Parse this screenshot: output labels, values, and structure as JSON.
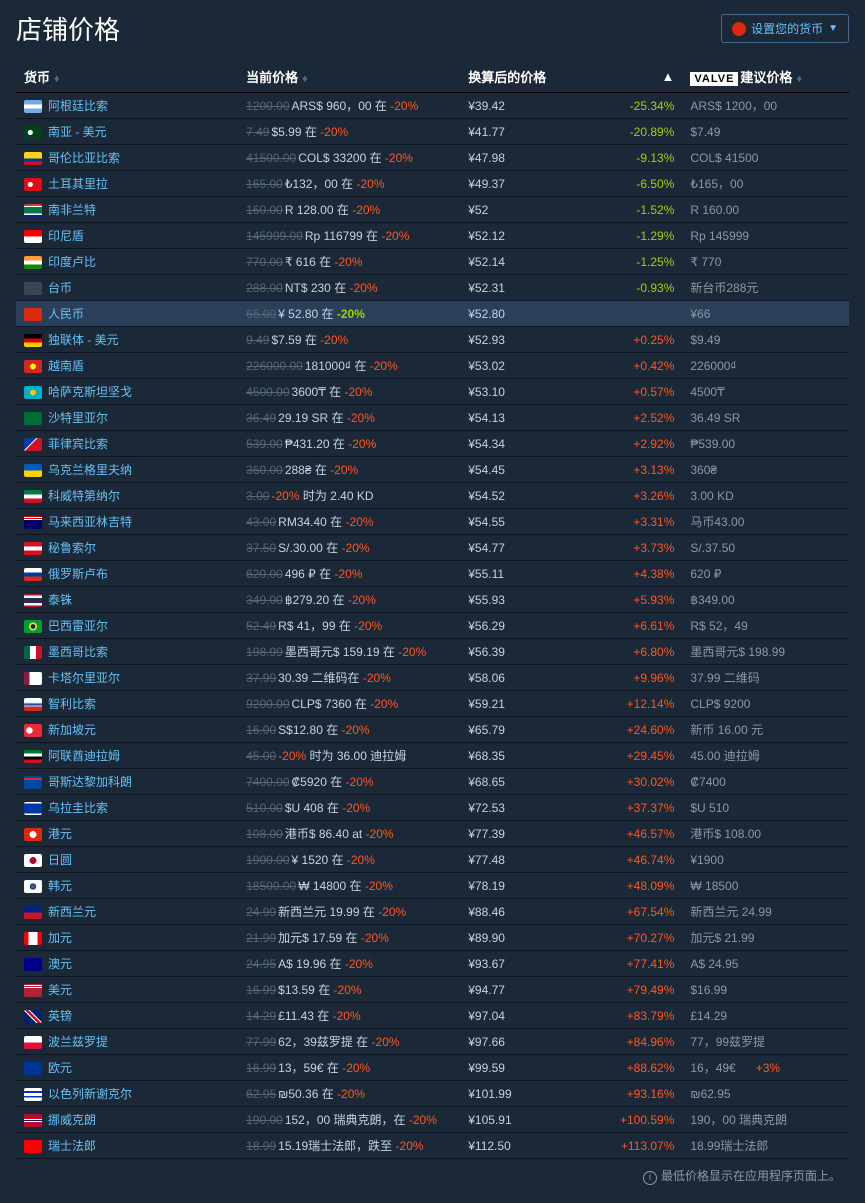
{
  "header": {
    "title": "店铺价格",
    "currencyBtn": "设置您的货币"
  },
  "columns": {
    "currency": "货币",
    "currentPrice": "当前价格",
    "converted": "换算后的价格",
    "valveLogo": "VALVE",
    "suggested": "建议价格"
  },
  "footer": {
    "note": "最低价格显示在应用程序页面上。"
  },
  "colors": {
    "background": "#1b2838",
    "rowBorder": "#0e1622",
    "highlightRow": "#2a3f5a",
    "text": "#c6d4df",
    "link": "#67c1f5",
    "strike": "#556772",
    "discountRed": "#ff5722",
    "discountGreen": "#a4d007",
    "positive": "#ff5722",
    "negative": "#a4d007",
    "muted": "#8f98a0"
  },
  "rows": [
    {
      "flag": "linear-gradient(to bottom,#74acdf 33%,#fff 33%,#fff 66%,#74acdf 66%)",
      "name": "阿根廷比索",
      "orig": "1200.00",
      "now": "ARS$ 960，00 在 ",
      "disc": "-20%",
      "conv": "¥39.42",
      "diff": "-25.34%",
      "diffType": "neg",
      "sugg": "ARS$ 1200，00"
    },
    {
      "flag": "radial-gradient(circle at 35% 50%,#fff 18%,#01411c 20%)",
      "name": "南亚 - 美元",
      "orig": "7.49",
      "now": "$5.99 在 ",
      "disc": "-20%",
      "conv": "¥41.77",
      "diff": "-20.89%",
      "diffType": "neg",
      "sugg": "$7.49"
    },
    {
      "flag": "linear-gradient(to bottom,#fcd116 50%,#003893 50%,#003893 75%,#ce1126 75%)",
      "name": "哥伦比亚比索",
      "orig": "41500.00",
      "now": "COL$ 33200 在 ",
      "disc": "-20%",
      "conv": "¥47.98",
      "diff": "-9.13%",
      "diffType": "neg",
      "sugg": "COL$ 41500"
    },
    {
      "flag": "radial-gradient(circle at 35% 50%,#fff 18%,#e30a17 20%)",
      "name": "土耳其里拉",
      "orig": "165.00",
      "now": "₺132，00 在 ",
      "disc": "-20%",
      "conv": "¥49.37",
      "diff": "-6.50%",
      "diffType": "neg",
      "sugg": "₺165，00"
    },
    {
      "flag": "linear-gradient(to bottom,#de3831 17%,#fff 17%,#fff 25%,#007a4d 25%,#007a4d 75%,#fff 75%,#fff 83%,#002395 83%)",
      "name": "南非兰特",
      "orig": "160.00",
      "now": "R 128.00 在 ",
      "disc": "-20%",
      "conv": "¥52",
      "diff": "-1.52%",
      "diffType": "neg",
      "sugg": "R 160.00"
    },
    {
      "flag": "linear-gradient(to bottom,#ff0000 50%,#fff 50%)",
      "name": "印尼盾",
      "orig": "145999.00",
      "now": "Rp 116799 在 ",
      "disc": "-20%",
      "conv": "¥52.12",
      "diff": "-1.29%",
      "diffType": "neg",
      "sugg": "Rp 145999"
    },
    {
      "flag": "linear-gradient(to bottom,#ff9933 33%,#fff 33%,#fff 66%,#138808 66%)",
      "name": "印度卢比",
      "orig": "770.00",
      "now": "₹ 616 在 ",
      "disc": "-20%",
      "conv": "¥52.14",
      "diff": "-1.25%",
      "diffType": "neg",
      "sugg": "₹ 770"
    },
    {
      "flag": "linear-gradient(to right,#3a4556,#3a4556)",
      "name": "台币",
      "orig": "288.00",
      "now": "NT$ 230 在 ",
      "disc": "-20%",
      "conv": "¥52.31",
      "diff": "-0.93%",
      "diffType": "neg",
      "sugg": "新台币288元"
    },
    {
      "flag": "linear-gradient(to right,#de2910,#de2910)",
      "name": "人民币",
      "orig": "66.00",
      "now": "¥ 52.80 在 ",
      "disc": "-20%",
      "conv": "¥52.80",
      "diff": "",
      "diffType": "",
      "sugg": "¥66",
      "highlight": true,
      "discHighlight": true
    },
    {
      "flag": "linear-gradient(to bottom,#000 33%,#dd0000 33%,#dd0000 66%,#ffce00 66%)",
      "name": "独联体 - 美元",
      "orig": "9.49",
      "now": "$7.59 在 ",
      "disc": "-20%",
      "conv": "¥52.93",
      "diff": "+0.25%",
      "diffType": "pos",
      "sugg": "$9.49"
    },
    {
      "flag": "radial-gradient(circle at 50% 50%,#ffff00 25%,#da251d 27%)",
      "name": "越南盾",
      "orig": "226000.00",
      "now": "181000₫ 在 ",
      "disc": "-20%",
      "conv": "¥53.02",
      "diff": "+0.42%",
      "diffType": "pos",
      "sugg": "226000₫"
    },
    {
      "flag": "radial-gradient(circle at 50% 50%,#fec50c 25%,#00afca 27%)",
      "name": "哈萨克斯坦坚戈",
      "orig": "4500.00",
      "now": "3600₸ 在 ",
      "disc": "-20%",
      "conv": "¥53.10",
      "diff": "+0.57%",
      "diffType": "pos",
      "sugg": "4500₸"
    },
    {
      "flag": "linear-gradient(to right,#006c35,#006c35)",
      "name": "沙特里亚尔",
      "orig": "36.49",
      "now": "29.19 SR 在 ",
      "disc": "-20%",
      "conv": "¥54.13",
      "diff": "+2.52%",
      "diffType": "pos",
      "sugg": "36.49 SR"
    },
    {
      "flag": "linear-gradient(135deg,#0038a8 40%,#fff 40%,#fff 45%,#ce1126 45%)",
      "name": "菲律宾比索",
      "orig": "539.00",
      "now": "₱431.20 在 ",
      "disc": "-20%",
      "conv": "¥54.34",
      "diff": "+2.92%",
      "diffType": "pos",
      "sugg": "₱539.00"
    },
    {
      "flag": "linear-gradient(to bottom,#005bbb 50%,#ffd500 50%)",
      "name": "乌克兰格里夫纳",
      "orig": "360.00",
      "now": "288₴ 在 ",
      "disc": "-20%",
      "conv": "¥54.45",
      "diff": "+3.13%",
      "diffType": "pos",
      "sugg": "360₴"
    },
    {
      "flag": "linear-gradient(to bottom,#007a3d 33%,#fff 33%,#fff 66%,#ce1126 66%)",
      "name": "科威特第纳尔",
      "orig": "3.00",
      "now": "",
      "disc": "-20%",
      "extraText": " 时为 2.40 KD",
      "conv": "¥54.52",
      "diff": "+3.26%",
      "diffType": "pos",
      "sugg": "3.00 KD"
    },
    {
      "flag": "linear-gradient(to bottom,#cc0001 8%,#fff 8%,#fff 16%,#cc0001 16%,#cc0001 24%,#fff 24%,#fff 32%,#010066 32%)",
      "name": "马来西亚林吉特",
      "orig": "43.00",
      "now": "RM34.40 在 ",
      "disc": "-20%",
      "conv": "¥54.55",
      "diff": "+3.31%",
      "diffType": "pos",
      "sugg": "马币43.00"
    },
    {
      "flag": "linear-gradient(to bottom,#d91023 33%,#fff 33%,#fff 66%,#d91023 66%)",
      "name": "秘鲁索尔",
      "orig": "37.50",
      "now": "S/.30.00 在 ",
      "disc": "-20%",
      "conv": "¥54.77",
      "diff": "+3.73%",
      "diffType": "pos",
      "sugg": "S/.37.50"
    },
    {
      "flag": "linear-gradient(to bottom,#fff 33%,#0039a6 33%,#0039a6 66%,#d52b1e 66%)",
      "name": "俄罗斯卢布",
      "orig": "620.00",
      "now": "496 ₽ 在 ",
      "disc": "-20%",
      "conv": "¥55.11",
      "diff": "+4.38%",
      "diffType": "pos",
      "sugg": "620 ₽"
    },
    {
      "flag": "linear-gradient(to bottom,#a51931 10%,#f4f5f8 10%,#f4f5f8 30%,#2d2a4a 30%,#2d2a4a 70%,#f4f5f8 70%,#f4f5f8 90%,#a51931 90%)",
      "name": "泰铢",
      "orig": "349.00",
      "now": "฿279.20 在 ",
      "disc": "-20%",
      "conv": "¥55.93",
      "diff": "+5.93%",
      "diffType": "pos",
      "sugg": "฿349.00"
    },
    {
      "flag": "radial-gradient(circle at 50% 50%,#002776 20%,#ffdf00 22%,#ffdf00 35%,#009b3a 37%)",
      "name": "巴西雷亚尔",
      "orig": "52.49",
      "now": "R$ 41，99 在 ",
      "disc": "-20%",
      "conv": "¥56.29",
      "diff": "+6.61%",
      "diffType": "pos",
      "sugg": "R$ 52，49"
    },
    {
      "flag": "linear-gradient(to right,#006847 33%,#fff 33%,#fff 66%,#ce1126 66%)",
      "name": "墨西哥比索",
      "orig": "198.99",
      "now": "墨西哥元$ 159.19 在 ",
      "disc": "-20%",
      "conv": "¥56.39",
      "diff": "+6.80%",
      "diffType": "pos",
      "sugg": "墨西哥元$ 198.99",
      "multiline": true
    },
    {
      "flag": "linear-gradient(to right,#8d1b3d 30%,#fff 30%)",
      "name": "卡塔尔里亚尔",
      "orig": "37.99",
      "now": "30.39 二维码在 ",
      "disc": "-20%",
      "conv": "¥58.06",
      "diff": "+9.96%",
      "diffType": "pos",
      "sugg": "37.99 二维码"
    },
    {
      "flag": "linear-gradient(to bottom,#fff 33%,#0039a6 50%,#fff 66%,#d52b1e 66%)",
      "name": "智利比索",
      "orig": "9200.00",
      "now": "CLP$ 7360 在 ",
      "disc": "-20%",
      "conv": "¥59.21",
      "diff": "+12.14%",
      "diffType": "pos",
      "sugg": "CLP$ 9200"
    },
    {
      "flag": "radial-gradient(circle at 30% 50%,#fff 22%,#ed2939 24%)",
      "name": "新加坡元",
      "orig": "16.00",
      "now": "S$12.80 在 ",
      "disc": "-20%",
      "conv": "¥65.79",
      "diff": "+24.60%",
      "diffType": "pos",
      "sugg": "新币 16.00 元"
    },
    {
      "flag": "linear-gradient(to bottom,#00732f 25%,#fff 25%,#fff 50%,#000 50%,#000 75%,#ce1126 75%)",
      "name": "阿联酋迪拉姆",
      "orig": "45.00",
      "now": "",
      "disc": "-20%",
      "extraText": " 时为 36.00 迪拉姆",
      "conv": "¥68.35",
      "diff": "+29.45%",
      "diffType": "pos",
      "sugg": "45.00 迪拉姆"
    },
    {
      "flag": "linear-gradient(to bottom,#0047a0 15%,#cd2e3a 15%,#cd2e3a 30%,#0047a0 30%)",
      "name": "哥斯达黎加科朗",
      "orig": "7400.00",
      "now": "₡5920 在 ",
      "disc": "-20%",
      "conv": "¥68.65",
      "diff": "+30.02%",
      "diffType": "pos",
      "sugg": "₡7400"
    },
    {
      "flag": "linear-gradient(to bottom,#fff 12%,#0038a8 12%,#0038a8 88%,#fff 88%)",
      "name": "乌拉圭比索",
      "orig": "510.00",
      "now": "$U 408 在 ",
      "disc": "-20%",
      "conv": "¥72.53",
      "diff": "+37.37%",
      "diffType": "pos",
      "sugg": "$U 510"
    },
    {
      "flag": "radial-gradient(circle at 50% 50%,#fff 30%,#de2910 32%)",
      "name": "港元",
      "orig": "108.00",
      "now": "港币$ 86.40 at ",
      "disc": "-20%",
      "conv": "¥77.39",
      "diff": "+46.57%",
      "diffType": "pos",
      "sugg": "港币$ 108.00"
    },
    {
      "flag": "radial-gradient(circle at 50% 50%,#bc002d 30%,#fff 32%)",
      "name": "日圆",
      "orig": "1900.00",
      "now": "¥ 1520 在 ",
      "disc": "-20%",
      "conv": "¥77.48",
      "diff": "+46.74%",
      "diffType": "pos",
      "sugg": "¥1900"
    },
    {
      "flag": "radial-gradient(circle at 50% 50%,#cd2e3a 15%,#0047a0 17%,#0047a0 28%,#fff 30%)",
      "name": "韩元",
      "orig": "18500.00",
      "now": "₩ 14800 在 ",
      "disc": "-20%",
      "conv": "¥78.19",
      "diff": "+48.09%",
      "diffType": "pos",
      "sugg": "₩ 18500"
    },
    {
      "flag": "linear-gradient(to bottom,#00247d 50%,#cc142b 50%)",
      "name": "新西兰元",
      "orig": "24.99",
      "now": "新西兰元 19.99 在 ",
      "disc": "-20%",
      "conv": "¥88.46",
      "diff": "+67.54%",
      "diffType": "pos",
      "sugg": "新西兰元 24.99"
    },
    {
      "flag": "linear-gradient(to right,#ff0000 25%,#fff 25%,#fff 75%,#ff0000 75%)",
      "name": "加元",
      "orig": "21.99",
      "now": "加元$ 17.59 在 ",
      "disc": "-20%",
      "conv": "¥89.90",
      "diff": "+70.27%",
      "diffType": "pos",
      "sugg": "加元$ 21.99"
    },
    {
      "flag": "linear-gradient(to bottom,#00008b 50%,#00008b 50%)",
      "name": "澳元",
      "orig": "24.95",
      "now": "A$ 19.96 在 ",
      "disc": "-20%",
      "conv": "¥93.67",
      "diff": "+77.41%",
      "diffType": "pos",
      "sugg": "A$ 24.95"
    },
    {
      "flag": "linear-gradient(to bottom,#b22234 8%,#fff 8%,#fff 16%,#b22234 16%,#b22234 24%,#fff 24%,#fff 32%,#b22234 32%)",
      "name": "美元",
      "orig": "16.99",
      "now": "$13.59 在 ",
      "disc": "-20%",
      "conv": "¥94.77",
      "diff": "+79.49%",
      "diffType": "pos",
      "sugg": "$16.99"
    },
    {
      "flag": "linear-gradient(45deg,#012169 40%,#fff 40%,#fff 45%,#c8102e 45%,#c8102e 55%,#fff 55%,#fff 60%,#012169 60%)",
      "name": "英镑",
      "orig": "14.29",
      "now": "£11.43 在 ",
      "disc": "-20%",
      "conv": "¥97.04",
      "diff": "+83.79%",
      "diffType": "pos",
      "sugg": "£14.29"
    },
    {
      "flag": "linear-gradient(to bottom,#fff 50%,#dc143c 50%)",
      "name": "波兰兹罗提",
      "orig": "77.99",
      "now": "62，39兹罗提 在 ",
      "disc": "-20%",
      "conv": "¥97.66",
      "diff": "+84.96%",
      "diffType": "pos",
      "sugg": "77，99兹罗提"
    },
    {
      "flag": "radial-gradient(circle at center,#003399 100%,#003399 100%)",
      "name": "欧元",
      "orig": "16.99",
      "now": "13，59€ 在 ",
      "disc": "-20%",
      "conv": "¥99.59",
      "diff": "+88.62%",
      "diffType": "pos",
      "sugg": "16，49€",
      "suggExtra": "+3%"
    },
    {
      "flag": "linear-gradient(to bottom,#fff 25%,#0038b8 25%,#0038b8 37%,#fff 37%,#fff 63%,#0038b8 63%,#0038b8 75%,#fff 75%)",
      "name": "以色列新谢克尔",
      "orig": "62.95",
      "now": "₪50.36 在 ",
      "disc": "-20%",
      "conv": "¥101.99",
      "diff": "+93.16%",
      "diffType": "pos",
      "sugg": "₪62.95"
    },
    {
      "flag": "linear-gradient(to bottom,#ba0c2f 40%,#fff 40%,#fff 47%,#00205b 47%,#00205b 53%,#fff 53%,#fff 60%,#ba0c2f 60%)",
      "name": "挪威克朗",
      "orig": "190.00",
      "now": "152，00 瑞典克朗，在 ",
      "disc": "-20%",
      "conv": "¥105.91",
      "diff": "+100.59%",
      "diffType": "pos",
      "sugg": "190，00 瑞典克朗",
      "multiline": true
    },
    {
      "flag": "linear-gradient(to right,#ff0000 50%,#ff0000 50%)",
      "name": "瑞士法郎",
      "orig": "18.99",
      "now": "15.19瑞士法郎，跌至 ",
      "disc": "-20%",
      "conv": "¥112.50",
      "diff": "+113.07%",
      "diffType": "pos",
      "sugg": "18.99瑞士法郎"
    }
  ]
}
